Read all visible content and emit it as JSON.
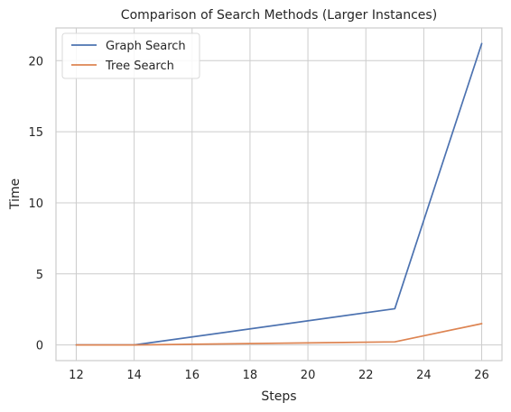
{
  "chart_data": {
    "type": "line",
    "title": "Comparison of Search Methods (Larger Instances)",
    "xlabel": "Steps",
    "ylabel": "Time",
    "xlim": [
      11.3,
      26.7
    ],
    "ylim": [
      -1.1,
      22.3
    ],
    "xticks": [
      12,
      14,
      16,
      18,
      20,
      22,
      24,
      26
    ],
    "yticks": [
      0,
      5,
      10,
      15,
      20
    ],
    "grid": true,
    "legend_position": "top-left",
    "series": [
      {
        "name": "Graph Search",
        "color": "#4c72b0",
        "x": [
          12,
          14,
          23,
          26
        ],
        "y": [
          0.0,
          0.0,
          2.55,
          21.2
        ]
      },
      {
        "name": "Tree Search",
        "color": "#dd8452",
        "x": [
          12,
          14,
          23,
          26
        ],
        "y": [
          0.0,
          0.0,
          0.22,
          1.5
        ]
      }
    ]
  }
}
